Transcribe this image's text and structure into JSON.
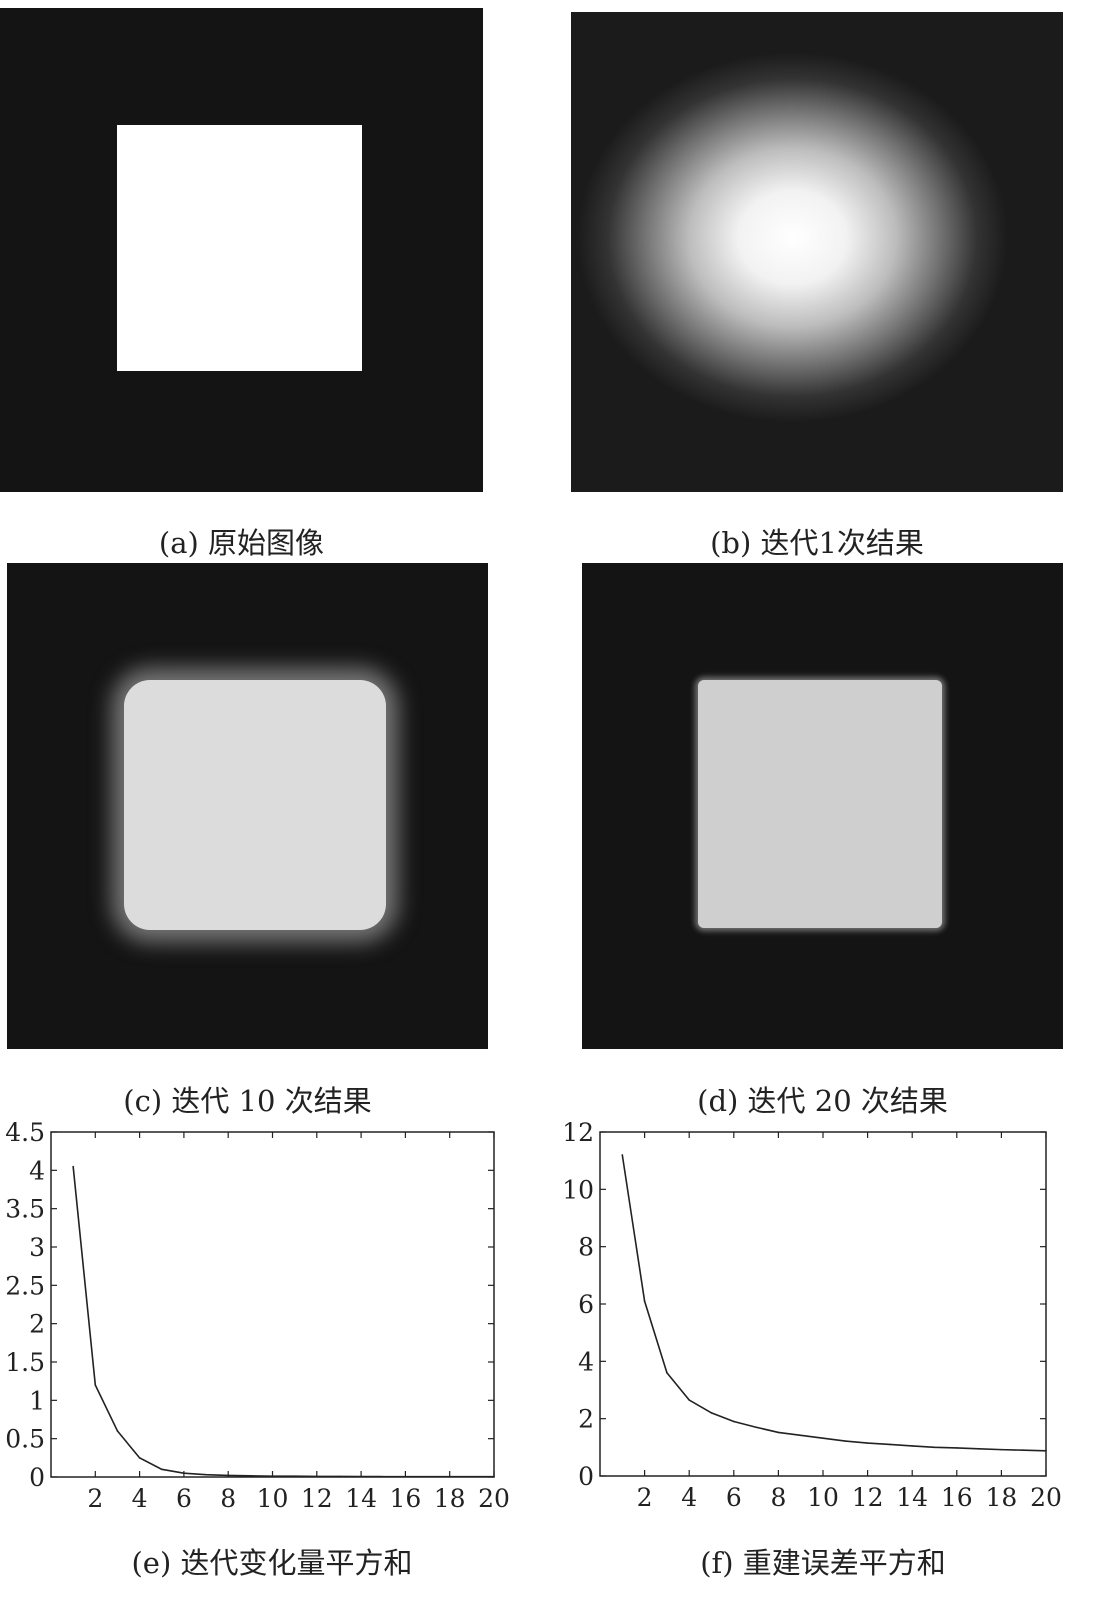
{
  "panels": [
    {
      "caption": "(a) 原始图像"
    },
    {
      "caption": "(b) 迭代1次结果"
    },
    {
      "caption": "(c) 迭代 10 次结果"
    },
    {
      "caption": "(d) 迭代 20 次结果"
    }
  ],
  "chart_data": [
    {
      "type": "line",
      "caption": "(e) 迭代变化量平方和",
      "x": [
        1,
        2,
        3,
        4,
        5,
        6,
        7,
        8,
        9,
        10,
        11,
        12,
        13,
        14,
        15,
        16,
        17,
        18,
        19,
        20
      ],
      "y": [
        4.05,
        1.2,
        0.6,
        0.25,
        0.1,
        0.05,
        0.03,
        0.02,
        0.015,
        0.01,
        0.01,
        0.008,
        0.007,
        0.006,
        0.005,
        0.005,
        0.004,
        0.004,
        0.004,
        0.004
      ],
      "xlim": [
        0,
        20
      ],
      "ylim": [
        0,
        4.5
      ],
      "xticks": [
        2,
        4,
        6,
        8,
        10,
        12,
        14,
        16,
        18,
        20
      ],
      "yticks": [
        0,
        0.5,
        1,
        1.5,
        2,
        2.5,
        3,
        3.5,
        4,
        4.5
      ],
      "xtick_labels": [
        "2",
        "4",
        "6",
        "8",
        "10",
        "12",
        "14",
        "16",
        "18",
        "20"
      ],
      "ytick_labels": [
        "0",
        "0.5",
        "1",
        "1.5",
        "2",
        "2.5",
        "3",
        "3.5",
        "4",
        "4.5"
      ]
    },
    {
      "type": "line",
      "caption": "(f) 重建误差平方和",
      "x": [
        1,
        2,
        3,
        4,
        5,
        6,
        7,
        8,
        9,
        10,
        11,
        12,
        13,
        14,
        15,
        16,
        17,
        18,
        19,
        20
      ],
      "y": [
        11.2,
        6.1,
        3.6,
        2.65,
        2.2,
        1.9,
        1.7,
        1.52,
        1.42,
        1.32,
        1.22,
        1.15,
        1.1,
        1.05,
        1.0,
        0.98,
        0.95,
        0.92,
        0.9,
        0.88
      ],
      "xlim": [
        0,
        20
      ],
      "ylim": [
        0,
        12
      ],
      "xticks": [
        2,
        4,
        6,
        8,
        10,
        12,
        14,
        16,
        18,
        20
      ],
      "yticks": [
        0,
        2,
        4,
        6,
        8,
        10,
        12
      ],
      "xtick_labels": [
        "2",
        "4",
        "6",
        "8",
        "10",
        "12",
        "14",
        "16",
        "18",
        "20"
      ],
      "ytick_labels": [
        "0",
        "2",
        "4",
        "6",
        "8",
        "10",
        "12"
      ]
    }
  ]
}
